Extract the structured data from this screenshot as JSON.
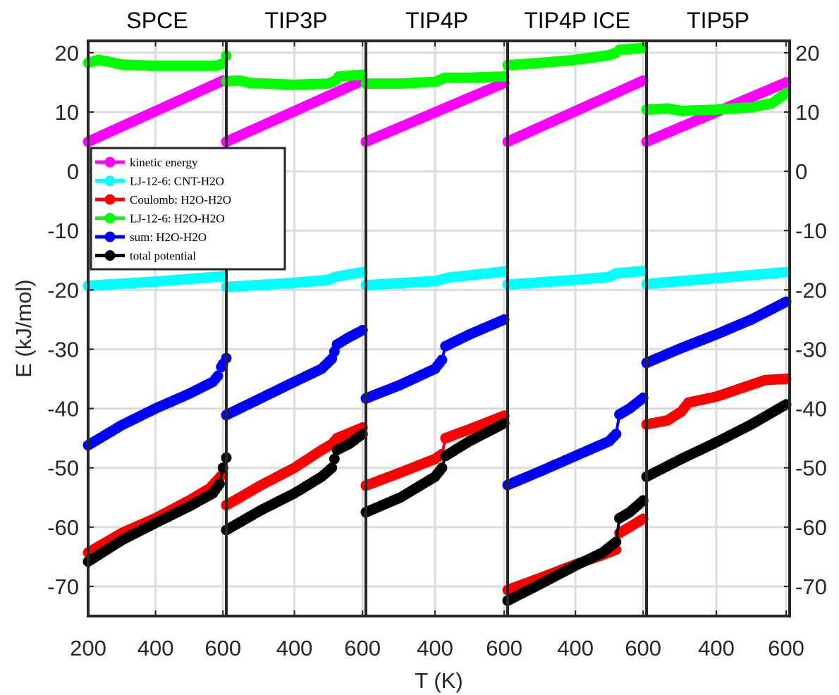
{
  "chart_data": {
    "type": "line",
    "xlabel": "T (K)",
    "ylabel": "E (kJ/mol)",
    "ylim": [
      -75,
      22
    ],
    "xlim": [
      200,
      610
    ],
    "yticks": [
      -70,
      -60,
      -50,
      -40,
      -30,
      -20,
      -10,
      0,
      10,
      20
    ],
    "xticks": [
      200,
      400,
      600
    ],
    "grid": true,
    "legend_position": "upper-left",
    "series_styles": [
      {
        "name": "kinetic energy",
        "color": "#ff00ff"
      },
      {
        "name": "LJ-12-6: CNT-H2O",
        "color": "#00ffff"
      },
      {
        "name": "Coulomb: H2O-H2O",
        "color": "#ff0000"
      },
      {
        "name": "LJ-12-6: H2O-H2O",
        "color": "#00ff00"
      },
      {
        "name": "sum: H2O-H2O",
        "color": "#0000ff"
      },
      {
        "name": "total potential",
        "color": "#000000"
      }
    ],
    "panels": [
      {
        "title": "SPCE",
        "series": [
          {
            "name": "kinetic energy",
            "points": [
              [
                200,
                5
              ],
              [
                600,
                15.3
              ]
            ]
          },
          {
            "name": "LJ-12-6: CNT-H2O",
            "points": [
              [
                200,
                -19.3
              ],
              [
                400,
                -18.6
              ],
              [
                600,
                -17.7
              ]
            ]
          },
          {
            "name": "Coulomb: H2O-H2O",
            "points": [
              [
                200,
                -64.3
              ],
              [
                300,
                -61
              ],
              [
                400,
                -58.5
              ],
              [
                500,
                -55.5
              ],
              [
                560,
                -53.5
              ],
              [
                600,
                -51
              ]
            ]
          },
          {
            "name": "LJ-12-6: H2O-H2O",
            "points": [
              [
                200,
                18.3
              ],
              [
                230,
                18.8
              ],
              [
                260,
                18.5
              ],
              [
                300,
                18
              ],
              [
                400,
                17.8
              ],
              [
                500,
                17.8
              ],
              [
                580,
                17.8
              ],
              [
                600,
                18.2
              ],
              [
                610,
                19.5
              ]
            ]
          },
          {
            "name": "sum: H2O-H2O",
            "points": [
              [
                200,
                -46.2
              ],
              [
                300,
                -42.8
              ],
              [
                400,
                -40
              ],
              [
                500,
                -37.5
              ],
              [
                570,
                -35.5
              ],
              [
                585,
                -34.5
              ],
              [
                595,
                -33
              ],
              [
                600,
                -32.5
              ],
              [
                610,
                -31.5
              ]
            ]
          },
          {
            "name": "total potential",
            "points": [
              [
                200,
                -65.8
              ],
              [
                300,
                -62.2
              ],
              [
                400,
                -59.3
              ],
              [
                500,
                -56.5
              ],
              [
                570,
                -54.3
              ],
              [
                590,
                -52.7
              ],
              [
                600,
                -50
              ],
              [
                610,
                -48.3
              ]
            ]
          }
        ]
      },
      {
        "title": "TIP3P",
        "series": [
          {
            "name": "kinetic energy",
            "points": [
              [
                200,
                5
              ],
              [
                600,
                15.3
              ]
            ]
          },
          {
            "name": "LJ-12-6: CNT-H2O",
            "points": [
              [
                200,
                -19.5
              ],
              [
                400,
                -18.8
              ],
              [
                500,
                -18.3
              ],
              [
                520,
                -17.8
              ],
              [
                600,
                -17
              ]
            ]
          },
          {
            "name": "Coulomb: H2O-H2O",
            "points": [
              [
                200,
                -56.3
              ],
              [
                240,
                -55
              ],
              [
                300,
                -53
              ],
              [
                400,
                -50
              ],
              [
                480,
                -47
              ],
              [
                510,
                -46
              ],
              [
                525,
                -45
              ],
              [
                600,
                -43.2
              ]
            ]
          },
          {
            "name": "LJ-12-6: H2O-H2O",
            "points": [
              [
                200,
                15.2
              ],
              [
                240,
                15.3
              ],
              [
                270,
                14.9
              ],
              [
                400,
                14.6
              ],
              [
                500,
                14.8
              ],
              [
                520,
                15.3
              ],
              [
                530,
                16
              ],
              [
                600,
                16.3
              ]
            ]
          },
          {
            "name": "sum: H2O-H2O",
            "points": [
              [
                200,
                -41.1
              ],
              [
                300,
                -38.3
              ],
              [
                400,
                -35.5
              ],
              [
                480,
                -33.3
              ],
              [
                510,
                -31.6
              ],
              [
                525,
                -29.2
              ],
              [
                560,
                -28
              ],
              [
                600,
                -26.8
              ]
            ]
          },
          {
            "name": "total potential",
            "points": [
              [
                200,
                -60.5
              ],
              [
                300,
                -57.2
              ],
              [
                400,
                -54.3
              ],
              [
                480,
                -51.5
              ],
              [
                510,
                -50
              ],
              [
                525,
                -47
              ],
              [
                560,
                -46
              ],
              [
                600,
                -44.3
              ]
            ]
          }
        ]
      },
      {
        "title": "TIP4P",
        "series": [
          {
            "name": "kinetic energy",
            "points": [
              [
                200,
                5
              ],
              [
                600,
                14.9
              ]
            ]
          },
          {
            "name": "LJ-12-6: CNT-H2O",
            "points": [
              [
                200,
                -19.2
              ],
              [
                400,
                -18.5
              ],
              [
                440,
                -17.9
              ],
              [
                600,
                -16.9
              ]
            ]
          },
          {
            "name": "Coulomb: H2O-H2O",
            "points": [
              [
                200,
                -53
              ],
              [
                300,
                -50.8
              ],
              [
                400,
                -48.5
              ],
              [
                420,
                -47.7
              ],
              [
                430,
                -45
              ],
              [
                500,
                -43.5
              ],
              [
                600,
                -41.2
              ]
            ]
          },
          {
            "name": "LJ-12-6: H2O-H2O",
            "points": [
              [
                200,
                14.8
              ],
              [
                300,
                14.8
              ],
              [
                400,
                15.1
              ],
              [
                430,
                15.8
              ],
              [
                500,
                15.8
              ],
              [
                600,
                16
              ]
            ]
          },
          {
            "name": "sum: H2O-H2O",
            "points": [
              [
                200,
                -38.3
              ],
              [
                300,
                -36
              ],
              [
                400,
                -33.3
              ],
              [
                420,
                -31.8
              ],
              [
                430,
                -29.5
              ],
              [
                500,
                -27.5
              ],
              [
                600,
                -25
              ]
            ]
          },
          {
            "name": "total potential",
            "points": [
              [
                200,
                -57.5
              ],
              [
                300,
                -55
              ],
              [
                400,
                -51.5
              ],
              [
                420,
                -50
              ],
              [
                430,
                -48
              ],
              [
                500,
                -45.5
              ],
              [
                600,
                -42.5
              ]
            ]
          }
        ]
      },
      {
        "title": "TIP4P ICE",
        "series": [
          {
            "name": "kinetic energy",
            "points": [
              [
                200,
                5
              ],
              [
                600,
                15.3
              ]
            ]
          },
          {
            "name": "LJ-12-6: CNT-H2O",
            "points": [
              [
                200,
                -19.1
              ],
              [
                400,
                -18.3
              ],
              [
                500,
                -17.8
              ],
              [
                520,
                -17.2
              ],
              [
                600,
                -16.8
              ]
            ]
          },
          {
            "name": "Coulomb: H2O-H2O",
            "points": [
              [
                200,
                -70.6
              ],
              [
                300,
                -68.5
              ],
              [
                400,
                -66.3
              ],
              [
                480,
                -64.7
              ],
              [
                520,
                -63.8
              ],
              [
                530,
                -61
              ],
              [
                560,
                -60
              ],
              [
                600,
                -58.6
              ]
            ]
          },
          {
            "name": "LJ-12-6: H2O-H2O",
            "points": [
              [
                200,
                17.9
              ],
              [
                300,
                18.3
              ],
              [
                400,
                18.8
              ],
              [
                500,
                19.6
              ],
              [
                520,
                20
              ],
              [
                530,
                20.5
              ],
              [
                600,
                20.8
              ]
            ]
          },
          {
            "name": "sum: H2O-H2O",
            "points": [
              [
                200,
                -52.9
              ],
              [
                300,
                -50.5
              ],
              [
                400,
                -48
              ],
              [
                500,
                -45.5
              ],
              [
                520,
                -44.3
              ],
              [
                530,
                -41
              ],
              [
                560,
                -40
              ],
              [
                600,
                -38.2
              ]
            ]
          },
          {
            "name": "total potential",
            "points": [
              [
                200,
                -72.4
              ],
              [
                300,
                -69.5
              ],
              [
                400,
                -66.5
              ],
              [
                480,
                -64.3
              ],
              [
                520,
                -62.5
              ],
              [
                530,
                -58.5
              ],
              [
                560,
                -57.5
              ],
              [
                600,
                -55.5
              ]
            ]
          }
        ]
      },
      {
        "title": "TIP5P",
        "series": [
          {
            "name": "kinetic energy",
            "points": [
              [
                200,
                5
              ],
              [
                600,
                15
              ]
            ]
          },
          {
            "name": "LJ-12-6: CNT-H2O",
            "points": [
              [
                200,
                -19
              ],
              [
                400,
                -18
              ],
              [
                600,
                -17
              ]
            ]
          },
          {
            "name": "Coulomb: H2O-H2O",
            "points": [
              [
                200,
                -42.7
              ],
              [
                260,
                -42
              ],
              [
                300,
                -40.5
              ],
              [
                320,
                -39
              ],
              [
                400,
                -38
              ],
              [
                500,
                -36
              ],
              [
                540,
                -35.2
              ],
              [
                600,
                -35
              ]
            ]
          },
          {
            "name": "LJ-12-6: H2O-H2O",
            "points": [
              [
                200,
                10.4
              ],
              [
                260,
                10.6
              ],
              [
                300,
                10.2
              ],
              [
                400,
                10.4
              ],
              [
                500,
                10.8
              ],
              [
                560,
                11.5
              ],
              [
                600,
                13.2
              ]
            ]
          },
          {
            "name": "sum: H2O-H2O",
            "points": [
              [
                200,
                -32.3
              ],
              [
                300,
                -29.8
              ],
              [
                400,
                -27.5
              ],
              [
                500,
                -25
              ],
              [
                600,
                -22
              ]
            ]
          },
          {
            "name": "total potential",
            "points": [
              [
                200,
                -51.5
              ],
              [
                300,
                -48.5
              ],
              [
                400,
                -45.7
              ],
              [
                500,
                -42.7
              ],
              [
                600,
                -39.3
              ]
            ]
          }
        ]
      }
    ]
  }
}
